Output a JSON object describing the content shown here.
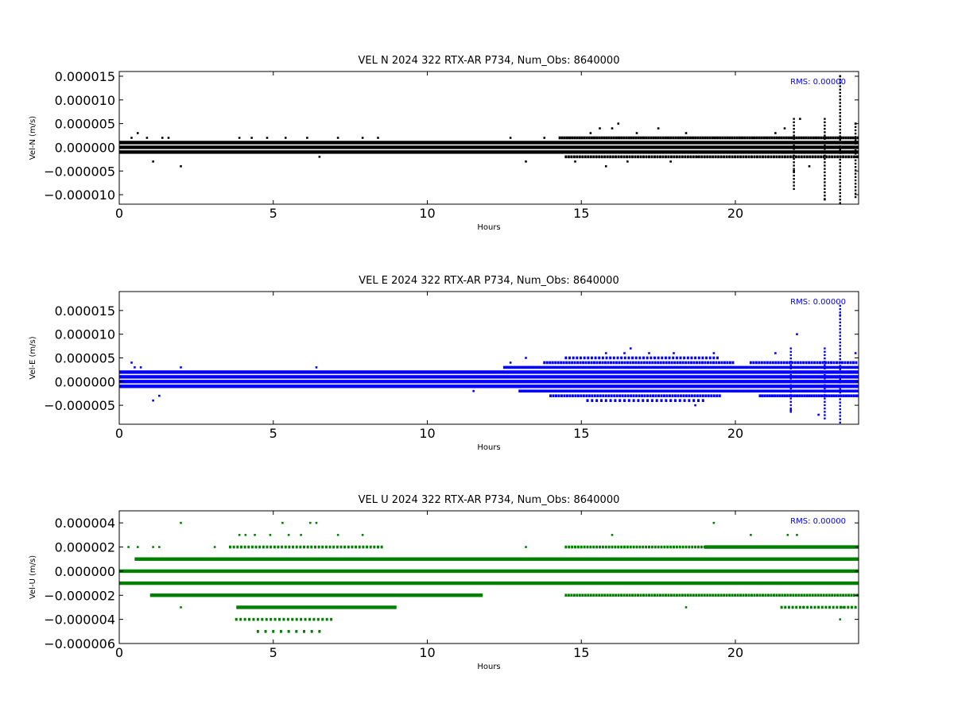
{
  "chart_data": [
    {
      "type": "scatter",
      "title": "VEL N 2024 322 RTX-AR  P734, Num_Obs: 8640000",
      "xlabel": "Hours",
      "ylabel": "Vel-N (m/s)",
      "xlim": [
        0,
        24
      ],
      "ylim": [
        -1.2e-05,
        1.6e-05
      ],
      "xticks": [
        0,
        5,
        10,
        15,
        20
      ],
      "xtick_labels": [
        "0",
        "5",
        "10",
        "15",
        "20"
      ],
      "yticks": [
        -1e-05,
        -5e-06,
        0,
        5e-06,
        1e-05,
        1.5e-05
      ],
      "ytick_labels": [
        "−0.000010",
        "−0.000005",
        "0.000000",
        "0.000005",
        "0.000010",
        "0.000015"
      ],
      "annotation": "RMS:  0.00000",
      "grid": false,
      "series": [
        {
          "color": "#000000",
          "bands": [
            {
              "y": 1e-06,
              "x_start": 0,
              "x_end": 24
            },
            {
              "y": 0,
              "x_start": 0,
              "x_end": 24
            },
            {
              "y": -1e-06,
              "x_start": 0,
              "x_end": 24
            }
          ],
          "dotted_bands": [
            {
              "y": 2e-06,
              "x_start": 14.3,
              "x_end": 24,
              "step": 0.08
            },
            {
              "y": -2e-06,
              "x_start": 14.5,
              "x_end": 24,
              "step": 0.09
            }
          ],
          "outliers_x": [
            0.4,
            0.6,
            0.9,
            1.1,
            1.4,
            1.6,
            2.0,
            3.9,
            4.3,
            4.8,
            5.4,
            6.1,
            6.5,
            7.1,
            7.9,
            8.4,
            12.7,
            13.2,
            13.8,
            14.8,
            15.3,
            15.6,
            15.8,
            16.0,
            16.2,
            16.5,
            16.8,
            17.5,
            17.9,
            18.4,
            18.8,
            19.3,
            20.6,
            21.3,
            21.6,
            21.9,
            22.1,
            22.4,
            22.9,
            23.4,
            23.9
          ],
          "outliers_y": [
            2e-06,
            3e-06,
            2e-06,
            -3e-06,
            2e-06,
            2e-06,
            -4e-06,
            2e-06,
            2e-06,
            2e-06,
            2e-06,
            2e-06,
            -2e-06,
            2e-06,
            2e-06,
            2e-06,
            2e-06,
            -3e-06,
            2e-06,
            -3e-06,
            3e-06,
            4e-06,
            -4e-06,
            4e-06,
            5e-06,
            -3e-06,
            3e-06,
            4e-06,
            -3e-06,
            3e-06,
            -2e-06,
            2e-06,
            2e-06,
            3e-06,
            4e-06,
            -5e-06,
            6e-06,
            -4e-06,
            -1.1e-05,
            1.5e-05,
            5e-06
          ],
          "spikes": [
            {
              "x": 21.9,
              "y_min": -9e-06,
              "y_max": 6e-06
            },
            {
              "x": 22.9,
              "y_min": -1.1e-05,
              "y_max": 6e-06
            },
            {
              "x": 23.4,
              "y_min": -1.2e-05,
              "y_max": 1.5e-05
            },
            {
              "x": 23.9,
              "y_min": -1.1e-05,
              "y_max": 5e-06
            }
          ]
        }
      ]
    },
    {
      "type": "scatter",
      "title": "VEL E 2024 322 RTX-AR  P734, Num_Obs: 8640000",
      "xlabel": "Hours",
      "ylabel": "Vel-E (m/s)",
      "xlim": [
        0,
        24
      ],
      "ylim": [
        -9e-06,
        1.9e-05
      ],
      "xticks": [
        0,
        5,
        10,
        15,
        20
      ],
      "xtick_labels": [
        "0",
        "5",
        "10",
        "15",
        "20"
      ],
      "yticks": [
        -5e-06,
        0,
        5e-06,
        1e-05,
        1.5e-05
      ],
      "ytick_labels": [
        "−0.000005",
        "0.000000",
        "0.000005",
        "0.000010",
        "0.000015"
      ],
      "annotation": "RMS:  0.00000",
      "grid": false,
      "series": [
        {
          "color": "#0000ff",
          "bands": [
            {
              "y": 2e-06,
              "x_start": 0,
              "x_end": 24
            },
            {
              "y": 1e-06,
              "x_start": 0,
              "x_end": 24
            },
            {
              "y": 0,
              "x_start": 0,
              "x_end": 24
            },
            {
              "y": -1e-06,
              "x_start": 0,
              "x_end": 24
            }
          ],
          "dotted_bands": [
            {
              "y": 3e-06,
              "x_start": 12.5,
              "x_end": 24,
              "step": 0.07
            },
            {
              "y": 4e-06,
              "x_start": 13.8,
              "x_end": 20.0,
              "step": 0.09
            },
            {
              "y": 4e-06,
              "x_start": 20.5,
              "x_end": 24,
              "step": 0.09
            },
            {
              "y": 5e-06,
              "x_start": 14.5,
              "x_end": 19.5,
              "step": 0.12
            },
            {
              "y": -2e-06,
              "x_start": 13.0,
              "x_end": 24,
              "step": 0.07
            },
            {
              "y": -3e-06,
              "x_start": 14.0,
              "x_end": 19.5,
              "step": 0.09
            },
            {
              "y": -3e-06,
              "x_start": 20.8,
              "x_end": 24,
              "step": 0.08
            },
            {
              "y": -4e-06,
              "x_start": 15.2,
              "x_end": 19.0,
              "step": 0.15
            }
          ],
          "outliers_x": [
            0.4,
            0.5,
            0.7,
            1.1,
            1.3,
            2.0,
            2.4,
            3.0,
            3.3,
            3.6,
            4.0,
            4.3,
            5.3,
            6.4,
            6.9,
            7.2,
            8.1,
            8.4,
            10.2,
            11.5,
            12.7,
            13.2,
            15.8,
            16.4,
            16.6,
            17.2,
            18.0,
            18.7,
            19.3,
            21.3,
            21.8,
            22.0,
            22.7,
            23.4,
            23.9
          ],
          "outliers_y": [
            4e-06,
            3e-06,
            3e-06,
            -4e-06,
            -3e-06,
            3e-06,
            2e-06,
            2e-06,
            2e-06,
            2e-06,
            2e-06,
            2e-06,
            2e-06,
            3e-06,
            2e-06,
            2e-06,
            2e-06,
            2e-06,
            2e-06,
            -2e-06,
            4e-06,
            5e-06,
            6e-06,
            6e-06,
            7e-06,
            6e-06,
            6e-06,
            -5e-06,
            6e-06,
            6e-06,
            -6e-06,
            1e-05,
            -7e-06,
            1.4e-05,
            6e-06
          ],
          "spikes": [
            {
              "x": 21.8,
              "y_min": -7e-06,
              "y_max": 7e-06
            },
            {
              "x": 22.9,
              "y_min": -8e-06,
              "y_max": 7e-06
            },
            {
              "x": 23.4,
              "y_min": -9e-06,
              "y_max": 1.6e-05
            }
          ]
        }
      ]
    },
    {
      "type": "scatter",
      "title": "VEL U 2024 322 RTX-AR  P734, Num_Obs: 8640000",
      "xlabel": "Hours",
      "ylabel": "Vel-U (m/s)",
      "xlim": [
        0,
        24
      ],
      "ylim": [
        -6e-06,
        5e-06
      ],
      "xticks": [
        0,
        5,
        10,
        15,
        20
      ],
      "xtick_labels": [
        "0",
        "5",
        "10",
        "15",
        "20"
      ],
      "yticks": [
        -6e-06,
        -4e-06,
        -2e-06,
        0,
        2e-06,
        4e-06
      ],
      "ytick_labels": [
        "−0.000006",
        "−0.000004",
        "−0.000002",
        "0.000000",
        "0.000002",
        "0.000004"
      ],
      "annotation": "RMS:  0.00000",
      "grid": false,
      "series": [
        {
          "color": "#007f00",
          "bands": [
            {
              "y": 2e-06,
              "x_start": 19.0,
              "x_end": 24
            },
            {
              "y": 1e-06,
              "x_start": 0.5,
              "x_end": 24
            },
            {
              "y": 0,
              "x_start": 0,
              "x_end": 24
            },
            {
              "y": -1e-06,
              "x_start": 0,
              "x_end": 24
            },
            {
              "y": -2e-06,
              "x_start": 1.0,
              "x_end": 11.8
            },
            {
              "y": -3e-06,
              "x_start": 3.8,
              "x_end": 9.0
            }
          ],
          "dotted_bands": [
            {
              "y": 2e-06,
              "x_start": 14.5,
              "x_end": 19.0,
              "step": 0.1
            },
            {
              "y": 2e-06,
              "x_start": 3.6,
              "x_end": 8.6,
              "step": 0.12
            },
            {
              "y": -2e-06,
              "x_start": 14.5,
              "x_end": 24,
              "step": 0.09
            },
            {
              "y": -3e-06,
              "x_start": 21.5,
              "x_end": 24,
              "step": 0.12
            },
            {
              "y": -4e-06,
              "x_start": 3.8,
              "x_end": 7.0,
              "step": 0.14
            },
            {
              "y": -5e-06,
              "x_start": 4.5,
              "x_end": 6.5,
              "step": 0.25
            }
          ],
          "outliers_x": [
            0.3,
            0.6,
            1.1,
            1.3,
            2.0,
            2.0,
            3.1,
            3.9,
            4.1,
            4.4,
            4.9,
            5.3,
            5.5,
            5.9,
            6.2,
            6.4,
            7.1,
            7.9,
            8.4,
            13.2,
            16.0,
            18.4,
            19.3,
            20.5,
            21.7,
            22.0,
            22.2,
            23.4,
            23.5
          ],
          "outliers_y": [
            2e-06,
            2e-06,
            2e-06,
            2e-06,
            4e-06,
            -3e-06,
            2e-06,
            3e-06,
            3e-06,
            3e-06,
            3e-06,
            4e-06,
            3e-06,
            3e-06,
            4e-06,
            4e-06,
            3e-06,
            3e-06,
            2e-06,
            2e-06,
            3e-06,
            -3e-06,
            4e-06,
            3e-06,
            3e-06,
            3e-06,
            -3e-06,
            -4e-06,
            -3e-06
          ]
        }
      ]
    }
  ]
}
